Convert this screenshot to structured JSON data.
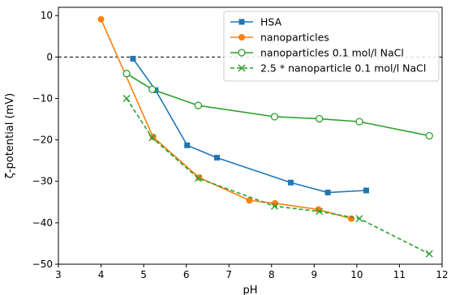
{
  "chart_data": {
    "type": "line",
    "title": "",
    "xlabel": "pH",
    "ylabel": "ζ-potential (mV)",
    "xlim": [
      3,
      12
    ],
    "ylim": [
      -50,
      12
    ],
    "xticks": [
      3,
      4,
      5,
      6,
      7,
      8,
      9,
      10,
      11,
      12
    ],
    "yticks": [
      10,
      0,
      -10,
      -20,
      -30,
      -40,
      -50
    ],
    "xtick_labels": [
      "3",
      "4",
      "5",
      "6",
      "7",
      "8",
      "9",
      "10",
      "11",
      "12"
    ],
    "ytick_labels": [
      "10",
      "0",
      "−10",
      "−20",
      "−30",
      "−40",
      "−50"
    ],
    "reference_line": {
      "y": 0,
      "style": "dashed",
      "color": "#000000"
    },
    "legend_position": "top-right",
    "series": [
      {
        "name": "HSA",
        "color": "#1f77b4",
        "marker": "square",
        "linestyle": "solid",
        "x": [
          4.75,
          5.28,
          6.02,
          6.72,
          8.45,
          9.32,
          10.22
        ],
        "y": [
          -0.4,
          -8.0,
          -21.3,
          -24.3,
          -30.3,
          -32.7,
          -32.2
        ]
      },
      {
        "name": "nanoparticles",
        "color": "#ff7f0e",
        "marker": "circle",
        "linestyle": "solid",
        "x": [
          4.0,
          5.22,
          6.3,
          7.48,
          8.08,
          9.1,
          9.87
        ],
        "y": [
          9.1,
          -19.3,
          -29.1,
          -34.6,
          -35.3,
          -36.8,
          -39.0
        ]
      },
      {
        "name": "nanoparticles 0.1 mol/l NaCl",
        "color": "#2ca02c",
        "marker": "open-circle",
        "linestyle": "solid",
        "x": [
          4.6,
          5.2,
          6.28,
          8.07,
          9.12,
          10.06,
          11.7
        ],
        "y": [
          -4.0,
          -7.8,
          -11.7,
          -14.4,
          -14.9,
          -15.6,
          -19.0
        ]
      },
      {
        "name": "2.5 * nanoparticle 0.1 mol/l NaCl",
        "color": "#2ca02c",
        "marker": "x",
        "linestyle": "dashed",
        "x": [
          4.6,
          5.2,
          6.28,
          8.07,
          9.12,
          10.06,
          11.7
        ],
        "y": [
          -10.0,
          -19.5,
          -29.25,
          -36.0,
          -37.25,
          -39.0,
          -47.5
        ]
      }
    ]
  }
}
